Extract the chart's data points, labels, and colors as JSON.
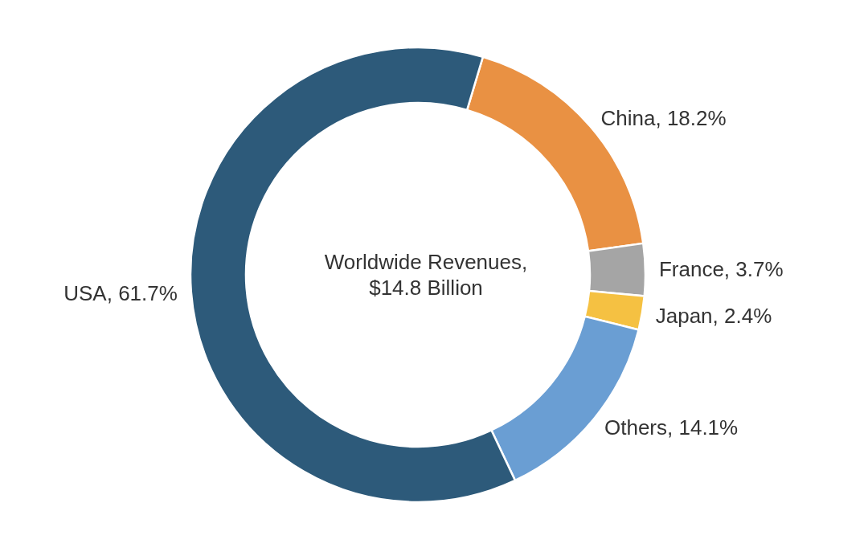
{
  "chart_data": {
    "type": "donut",
    "title": "Worldwide Revenues, $14.8 Billion",
    "categories": [
      "China",
      "France",
      "Japan",
      "Others",
      "USA"
    ],
    "values": [
      18.2,
      3.7,
      2.4,
      14.1,
      61.7
    ],
    "value_labels": [
      "18.2%",
      "3.7%",
      "2.4%",
      "14.1%",
      "61.7%"
    ],
    "colors": [
      "#e99143",
      "#a5a5a5",
      "#f5c142",
      "#6a9ed3",
      "#2d5a7a"
    ]
  }
}
